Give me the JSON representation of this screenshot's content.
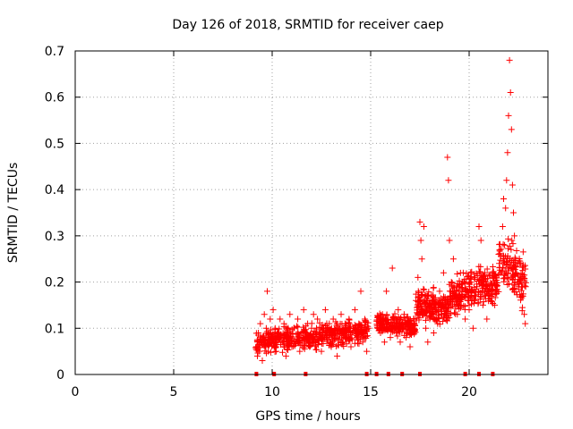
{
  "chart_data": {
    "type": "scatter",
    "title": "Day 126 of 2018, SRMTID for receiver caep",
    "xlabel": "GPS time / hours",
    "ylabel": "SRMTID / TECUs",
    "xlim": [
      0,
      24
    ],
    "ylim": [
      0,
      0.7
    ],
    "xticks": [
      "0",
      "5",
      "10",
      "15",
      "20"
    ],
    "xtick_values": [
      0,
      5,
      10,
      15,
      20
    ],
    "yticks": [
      "0",
      "0.1",
      "0.2",
      "0.3",
      "0.4",
      "0.5",
      "0.6",
      "0.7"
    ],
    "ytick_values": [
      0,
      0.1,
      0.2,
      0.3,
      0.4,
      0.5,
      0.6,
      0.7
    ],
    "grid": true,
    "marker": "+",
    "color": "#ff0000",
    "series": [
      {
        "name": "SRMTID",
        "points": [
          [
            9.2,
            0.06
          ],
          [
            9.25,
            0.04
          ],
          [
            9.3,
            0.09
          ],
          [
            9.35,
            0.05
          ],
          [
            9.4,
            0.11
          ],
          [
            9.45,
            0.07
          ],
          [
            9.5,
            0.03
          ],
          [
            9.55,
            0.08
          ],
          [
            9.6,
            0.13
          ],
          [
            9.65,
            0.06
          ],
          [
            9.7,
            0.1
          ],
          [
            9.75,
            0.18
          ],
          [
            9.8,
            0.05
          ],
          [
            9.85,
            0.09
          ],
          [
            9.9,
            0.12
          ],
          [
            9.95,
            0.07
          ],
          [
            10.0,
            0.08
          ],
          [
            10.05,
            0.14
          ],
          [
            10.1,
            0.06
          ],
          [
            10.15,
            0.1
          ],
          [
            10.2,
            0.05
          ],
          [
            10.3,
            0.09
          ],
          [
            10.4,
            0.12
          ],
          [
            10.5,
            0.07
          ],
          [
            10.6,
            0.11
          ],
          [
            10.7,
            0.04
          ],
          [
            10.8,
            0.08
          ],
          [
            10.9,
            0.13
          ],
          [
            11.0,
            0.06
          ],
          [
            11.1,
            0.1
          ],
          [
            11.2,
            0.07
          ],
          [
            11.3,
            0.12
          ],
          [
            11.4,
            0.05
          ],
          [
            11.5,
            0.09
          ],
          [
            11.6,
            0.14
          ],
          [
            11.7,
            0.08
          ],
          [
            11.8,
            0.11
          ],
          [
            11.9,
            0.06
          ],
          [
            12.0,
            0.1
          ],
          [
            12.1,
            0.13
          ],
          [
            12.2,
            0.07
          ],
          [
            12.3,
            0.12
          ],
          [
            12.4,
            0.09
          ],
          [
            12.5,
            0.05
          ],
          [
            12.6,
            0.1
          ],
          [
            12.7,
            0.14
          ],
          [
            12.8,
            0.08
          ],
          [
            12.9,
            0.11
          ],
          [
            13.0,
            0.06
          ],
          [
            13.1,
            0.12
          ],
          [
            13.2,
            0.09
          ],
          [
            13.3,
            0.04
          ],
          [
            13.4,
            0.1
          ],
          [
            13.5,
            0.13
          ],
          [
            13.6,
            0.07
          ],
          [
            13.7,
            0.11
          ],
          [
            13.8,
            0.08
          ],
          [
            13.9,
            0.12
          ],
          [
            14.0,
            0.06
          ],
          [
            14.1,
            0.1
          ],
          [
            14.2,
            0.14
          ],
          [
            14.3,
            0.08
          ],
          [
            14.4,
            0.11
          ],
          [
            14.5,
            0.18
          ],
          [
            14.6,
            0.07
          ],
          [
            14.7,
            0.12
          ],
          [
            14.8,
            0.05
          ],
          [
            14.9,
            0.1
          ],
          [
            15.5,
            0.09
          ],
          [
            15.6,
            0.13
          ],
          [
            15.7,
            0.07
          ],
          [
            15.8,
            0.18
          ],
          [
            15.9,
            0.11
          ],
          [
            16.0,
            0.08
          ],
          [
            16.1,
            0.23
          ],
          [
            16.2,
            0.12
          ],
          [
            16.3,
            0.09
          ],
          [
            16.4,
            0.14
          ],
          [
            16.5,
            0.07
          ],
          [
            16.6,
            0.1
          ],
          [
            16.7,
            0.13
          ],
          [
            16.8,
            0.08
          ],
          [
            16.9,
            0.11
          ],
          [
            17.0,
            0.06
          ],
          [
            17.1,
            0.1
          ],
          [
            17.2,
            0.12
          ],
          [
            17.3,
            0.16
          ],
          [
            17.4,
            0.21
          ],
          [
            17.5,
            0.33
          ],
          [
            17.55,
            0.29
          ],
          [
            17.6,
            0.25
          ],
          [
            17.7,
            0.32
          ],
          [
            17.8,
            0.1
          ],
          [
            17.9,
            0.07
          ],
          [
            18.0,
            0.12
          ],
          [
            18.1,
            0.15
          ],
          [
            18.2,
            0.09
          ],
          [
            18.3,
            0.14
          ],
          [
            18.4,
            0.11
          ],
          [
            18.5,
            0.18
          ],
          [
            18.6,
            0.13
          ],
          [
            18.7,
            0.22
          ],
          [
            18.8,
            0.16
          ],
          [
            18.9,
            0.47
          ],
          [
            18.95,
            0.42
          ],
          [
            19.0,
            0.29
          ],
          [
            19.1,
            0.2
          ],
          [
            19.2,
            0.25
          ],
          [
            19.3,
            0.17
          ],
          [
            19.4,
            0.13
          ],
          [
            19.5,
            0.19
          ],
          [
            19.6,
            0.15
          ],
          [
            19.7,
            0.22
          ],
          [
            19.8,
            0.12
          ],
          [
            19.9,
            0.18
          ],
          [
            20.0,
            0.14
          ],
          [
            20.1,
            0.2
          ],
          [
            20.2,
            0.1
          ],
          [
            20.3,
            0.16
          ],
          [
            20.4,
            0.19
          ],
          [
            20.5,
            0.32
          ],
          [
            20.6,
            0.29
          ],
          [
            20.7,
            0.15
          ],
          [
            20.8,
            0.22
          ],
          [
            20.9,
            0.12
          ],
          [
            21.0,
            0.18
          ],
          [
            21.1,
            0.16
          ],
          [
            21.2,
            0.21
          ],
          [
            21.3,
            0.15
          ],
          [
            21.4,
            0.19
          ],
          [
            21.5,
            0.26
          ],
          [
            21.6,
            0.22
          ],
          [
            21.7,
            0.32
          ],
          [
            21.75,
            0.38
          ],
          [
            21.8,
            0.28
          ],
          [
            21.85,
            0.36
          ],
          [
            21.9,
            0.42
          ],
          [
            21.95,
            0.48
          ],
          [
            22.0,
            0.56
          ],
          [
            22.05,
            0.68
          ],
          [
            22.1,
            0.61
          ],
          [
            22.15,
            0.53
          ],
          [
            22.2,
            0.41
          ],
          [
            22.25,
            0.35
          ],
          [
            22.3,
            0.3
          ],
          [
            22.35,
            0.25
          ],
          [
            22.4,
            0.22
          ],
          [
            22.5,
            0.19
          ],
          [
            22.6,
            0.24
          ],
          [
            22.7,
            0.17
          ],
          [
            22.8,
            0.13
          ],
          [
            22.85,
            0.11
          ]
        ],
        "dense_ranges": [
          {
            "from": 9.15,
            "to": 14.9,
            "center_start": 0.07,
            "center_end": 0.095,
            "spread": 0.035,
            "count": 520
          },
          {
            "from": 15.3,
            "to": 17.3,
            "center_start": 0.11,
            "center_end": 0.1,
            "spread": 0.03,
            "count": 220
          },
          {
            "from": 17.3,
            "to": 19.0,
            "center_start": 0.15,
            "center_end": 0.14,
            "spread": 0.05,
            "count": 200
          },
          {
            "from": 19.0,
            "to": 21.5,
            "center_start": 0.17,
            "center_end": 0.2,
            "spread": 0.06,
            "count": 260
          },
          {
            "from": 21.5,
            "to": 22.9,
            "center_start": 0.25,
            "center_end": 0.2,
            "spread": 0.08,
            "count": 140
          }
        ]
      }
    ],
    "baseline_marks": [
      9.2,
      10.1,
      11.7,
      14.8,
      15.3,
      15.9,
      16.6,
      17.5,
      19.8,
      20.5,
      21.2
    ]
  }
}
